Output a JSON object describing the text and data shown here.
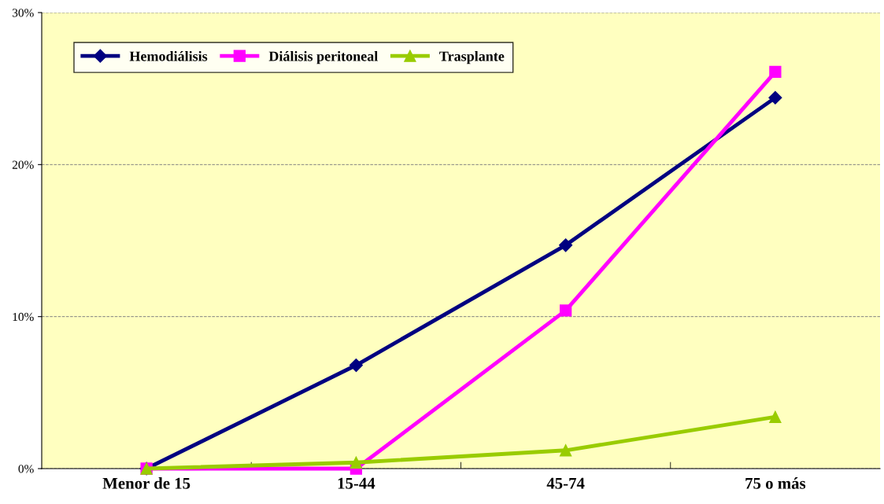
{
  "chart_data": {
    "type": "line",
    "categories": [
      "Menor de 15",
      "15-44",
      "45-74",
      "75 o más"
    ],
    "series": [
      {
        "name": "Hemodiálisis",
        "color": "#000080",
        "marker": "diamond",
        "values": [
          0,
          6.8,
          14.7,
          24.4
        ]
      },
      {
        "name": "Diálisis peritoneal",
        "color": "#ff00ff",
        "marker": "square",
        "values": [
          0,
          0,
          10.4,
          26.1
        ]
      },
      {
        "name": "Trasplante",
        "color": "#99cc00",
        "marker": "triangle",
        "values": [
          0,
          0.4,
          1.2,
          3.4
        ]
      }
    ],
    "ylim": [
      0,
      30
    ],
    "yticks": [
      {
        "value": 0,
        "label": "0%"
      },
      {
        "value": 10,
        "label": "10%"
      },
      {
        "value": 20,
        "label": "20%"
      },
      {
        "value": 30,
        "label": "30%"
      }
    ],
    "grid": "y",
    "legend": "top left",
    "line_style": "solid"
  }
}
